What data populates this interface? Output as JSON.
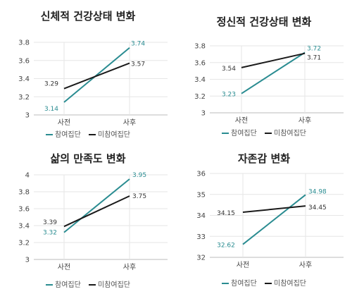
{
  "colors": {
    "participant": "#2a8c91",
    "nonparticipant": "#1a1a1a",
    "grid": "#e6e6e6"
  },
  "chart_data": [
    {
      "type": "line",
      "title": "신체적 건강상태 변화",
      "categories": [
        "사전",
        "사후"
      ],
      "ylim": [
        3,
        3.8
      ],
      "yticks": [
        "3",
        "3.2",
        "3.4",
        "3.6",
        "3.8"
      ],
      "series": [
        {
          "name": "참여집단",
          "values": [
            3.14,
            3.74
          ],
          "labels": [
            "3.14",
            "3.74"
          ]
        },
        {
          "name": "미참여집단",
          "values": [
            3.29,
            3.57
          ],
          "labels": [
            "3.29",
            "3.57"
          ]
        }
      ],
      "legend": "bottom",
      "grid": true
    },
    {
      "type": "line",
      "title": "정신적 건강상태 변화",
      "categories": [
        "사전",
        "사후"
      ],
      "ylim": [
        3,
        3.8
      ],
      "yticks": [
        "3",
        "3.2",
        "3.4",
        "3.6",
        "3.8"
      ],
      "series": [
        {
          "name": "참여집단",
          "values": [
            3.23,
            3.72
          ],
          "labels": [
            "3.23",
            "3.72"
          ]
        },
        {
          "name": "미참여집단",
          "values": [
            3.54,
            3.71
          ],
          "labels": [
            "3.54",
            "3.71"
          ]
        }
      ],
      "legend": "bottom",
      "grid": true
    },
    {
      "type": "line",
      "title": "삶의 만족도 변화",
      "categories": [
        "사전",
        "사후"
      ],
      "ylim": [
        3,
        4
      ],
      "yticks": [
        "3",
        "3.2",
        "3.4",
        "3.6",
        "3.8",
        "4"
      ],
      "series": [
        {
          "name": "참여집단",
          "values": [
            3.32,
            3.95
          ],
          "labels": [
            "3.32",
            "3.95"
          ]
        },
        {
          "name": "미참여집단",
          "values": [
            3.39,
            3.75
          ],
          "labels": [
            "3.39",
            "3.75"
          ]
        }
      ],
      "legend": "bottom",
      "grid": true
    },
    {
      "type": "line",
      "title": "자존감 변화",
      "categories": [
        "사전",
        "사후"
      ],
      "ylim": [
        32,
        36
      ],
      "yticks": [
        "32",
        "33",
        "34",
        "35",
        "36"
      ],
      "series": [
        {
          "name": "참여집단",
          "values": [
            32.62,
            34.98
          ],
          "labels": [
            "32.62",
            "34.98"
          ]
        },
        {
          "name": "미참여집단",
          "values": [
            34.15,
            34.45
          ],
          "labels": [
            "34.15",
            "34.45"
          ]
        }
      ],
      "legend": "bottom",
      "grid": true
    }
  ]
}
